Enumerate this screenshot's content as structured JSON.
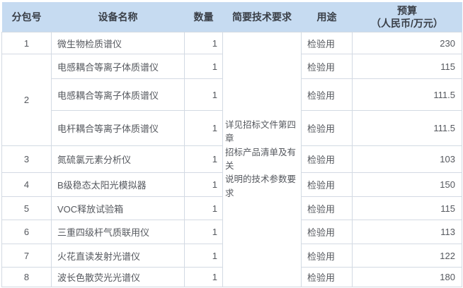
{
  "table": {
    "header": {
      "package_no": "分包号",
      "equipment_name": "设备名称",
      "quantity": "数量",
      "tech_requirements": "简要技术要求",
      "purpose": "用途",
      "budget_line1": "预算",
      "budget_line2": "（人民币/万元）"
    },
    "tech_note": "详见招标文件第四章\n招标产品清单及有关\n说明的技术参数要求",
    "rows": [
      {
        "package_no": "1",
        "package_rowspan": 1,
        "equipment": "微生物检质谱仪",
        "quantity": "1",
        "purpose": "检验用",
        "budget": "230"
      },
      {
        "package_no": "2",
        "package_rowspan": 3,
        "equipment": "电感耦合等离子体质谱仪",
        "quantity": "1",
        "purpose": "检验用",
        "budget": "115"
      },
      {
        "equipment": "电感耦合等离子体质谱仪",
        "quantity": "1",
        "purpose": "检验用",
        "budget": "111.5"
      },
      {
        "equipment": "电杆耦合等离子体质谱仪",
        "quantity": "1",
        "purpose": "检验用",
        "budget": "111.5"
      },
      {
        "package_no": "3",
        "package_rowspan": 1,
        "equipment": "氮硫氯元素分析仪",
        "quantity": "1",
        "purpose": "检验用",
        "budget": "103"
      },
      {
        "package_no": "4",
        "package_rowspan": 1,
        "equipment": "B级稳态太阳光模拟器",
        "quantity": "1",
        "purpose": "检验用",
        "budget": "150"
      },
      {
        "package_no": "5",
        "package_rowspan": 1,
        "equipment": "VOC释放试验箱",
        "quantity": "1",
        "purpose": "检验用",
        "budget": "115"
      },
      {
        "package_no": "6",
        "package_rowspan": 1,
        "equipment": "三重四级杆气质联用仪",
        "quantity": "1",
        "purpose": "检验用",
        "budget": "113"
      },
      {
        "package_no": "7",
        "package_rowspan": 1,
        "equipment": "火花直读发射光谱仪",
        "quantity": "1",
        "purpose": "检验用",
        "budget": "122"
      },
      {
        "package_no": "8",
        "package_rowspan": 1,
        "equipment": "波长色散荧光光谱仪",
        "quantity": "1",
        "purpose": "检验用",
        "budget": "180"
      }
    ],
    "colors": {
      "header_bg": "#c6dbf1",
      "border": "#d3dae3",
      "text": "#55585e"
    }
  }
}
